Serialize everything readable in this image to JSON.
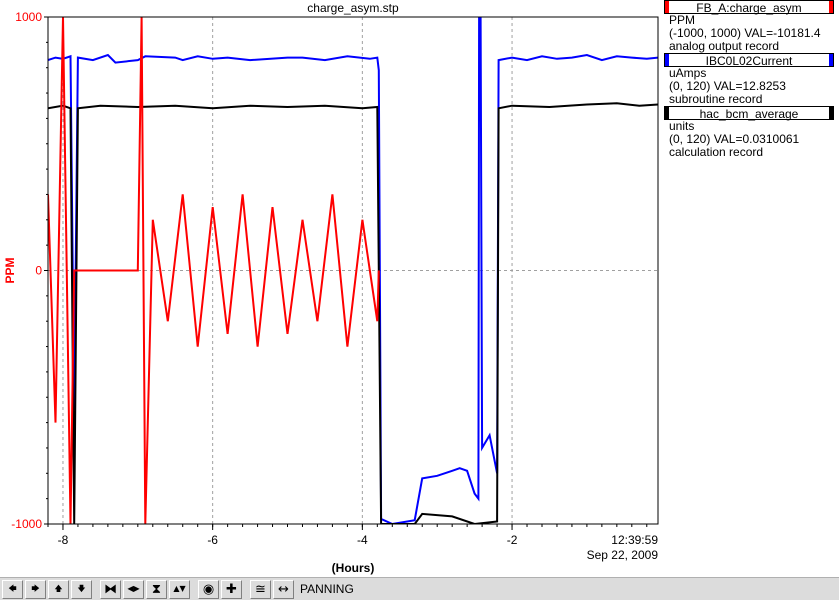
{
  "chart_data": {
    "type": "line",
    "title": "charge_asym.stp",
    "ylabel": "PPM",
    "xlabel": "(Hours)",
    "xlim": [
      -8.2,
      -0.05
    ],
    "ylim": [
      -1000,
      1000
    ],
    "x_ticks": [
      -8,
      -6,
      -4,
      -2
    ],
    "x_tick_labels": [
      "-8",
      "-6",
      "-4",
      "-2"
    ],
    "y_ticks": [
      -1000,
      0,
      1000
    ],
    "y_tick_labels": [
      "-1000",
      "0",
      "1000"
    ],
    "end_time": "12:39:59",
    "end_date": "Sep 22, 2009",
    "grid": true,
    "series": [
      {
        "name": "IBC0L02Current",
        "color": "#0000ff",
        "points": [
          [
            -8.2,
            830
          ],
          [
            -8.1,
            840
          ],
          [
            -8.0,
            835
          ],
          [
            -7.9,
            845
          ],
          [
            -7.85,
            -550
          ],
          [
            -7.8,
            840
          ],
          [
            -7.6,
            830
          ],
          [
            -7.4,
            850
          ],
          [
            -7.3,
            820
          ],
          [
            -7.0,
            830
          ],
          [
            -6.9,
            845
          ],
          [
            -6.5,
            840
          ],
          [
            -6.4,
            830
          ],
          [
            -6.2,
            845
          ],
          [
            -6.0,
            835
          ],
          [
            -5.8,
            840
          ],
          [
            -5.5,
            830
          ],
          [
            -5.0,
            840
          ],
          [
            -4.8,
            840
          ],
          [
            -4.5,
            830
          ],
          [
            -4.2,
            845
          ],
          [
            -3.9,
            835
          ],
          [
            -3.8,
            840
          ],
          [
            -3.78,
            790
          ],
          [
            -3.75,
            -980
          ],
          [
            -3.6,
            -1000
          ],
          [
            -3.3,
            -985
          ],
          [
            -3.2,
            -820
          ],
          [
            -3.0,
            -810
          ],
          [
            -2.9,
            -800
          ],
          [
            -2.8,
            -790
          ],
          [
            -2.7,
            -780
          ],
          [
            -2.6,
            -790
          ],
          [
            -2.5,
            -880
          ],
          [
            -2.45,
            -900
          ],
          [
            -2.44,
            1000
          ],
          [
            -2.42,
            1000
          ],
          [
            -2.4,
            -700
          ],
          [
            -2.3,
            -650
          ],
          [
            -2.2,
            -800
          ],
          [
            -2.18,
            830
          ],
          [
            -2.0,
            840
          ],
          [
            -1.8,
            830
          ],
          [
            -1.6,
            845
          ],
          [
            -1.4,
            835
          ],
          [
            -1.2,
            840
          ],
          [
            -1.0,
            850
          ],
          [
            -0.8,
            830
          ],
          [
            -0.6,
            845
          ],
          [
            -0.4,
            840
          ],
          [
            -0.2,
            835
          ],
          [
            -0.05,
            840
          ]
        ]
      },
      {
        "name": "hac_bcm_average",
        "color": "#000000",
        "points": [
          [
            -8.2,
            640
          ],
          [
            -8.0,
            650
          ],
          [
            -7.9,
            640
          ],
          [
            -7.85,
            -1000
          ],
          [
            -7.8,
            640
          ],
          [
            -7.5,
            650
          ],
          [
            -7.0,
            645
          ],
          [
            -6.5,
            650
          ],
          [
            -6.0,
            640
          ],
          [
            -5.5,
            650
          ],
          [
            -5.0,
            645
          ],
          [
            -4.5,
            650
          ],
          [
            -4.0,
            640
          ],
          [
            -3.8,
            645
          ],
          [
            -3.75,
            -1000
          ],
          [
            -3.3,
            -1000
          ],
          [
            -3.2,
            -960
          ],
          [
            -2.8,
            -970
          ],
          [
            -2.5,
            -1000
          ],
          [
            -2.2,
            -990
          ],
          [
            -2.18,
            640
          ],
          [
            -2.0,
            650
          ],
          [
            -1.5,
            645
          ],
          [
            -1.0,
            655
          ],
          [
            -0.6,
            660
          ],
          [
            -0.3,
            650
          ],
          [
            -0.05,
            655
          ]
        ]
      },
      {
        "name": "FB_A:charge_asym",
        "color": "#ff0000",
        "points": [
          [
            -8.2,
            300
          ],
          [
            -8.1,
            -600
          ],
          [
            -8.0,
            1000
          ],
          [
            -7.9,
            -1000
          ],
          [
            -7.85,
            0
          ],
          [
            -7.5,
            0
          ],
          [
            -7.0,
            0
          ],
          [
            -6.95,
            1000
          ],
          [
            -6.9,
            -1000
          ],
          [
            -6.8,
            200
          ],
          [
            -6.6,
            -200
          ],
          [
            -6.4,
            300
          ],
          [
            -6.2,
            -300
          ],
          [
            -6.0,
            250
          ],
          [
            -5.8,
            -250
          ],
          [
            -5.6,
            300
          ],
          [
            -5.4,
            -300
          ],
          [
            -5.2,
            250
          ],
          [
            -5.0,
            -250
          ],
          [
            -4.8,
            200
          ],
          [
            -4.6,
            -200
          ],
          [
            -4.4,
            300
          ],
          [
            -4.2,
            -300
          ],
          [
            -4.0,
            200
          ],
          [
            -3.8,
            -200
          ],
          [
            -3.78,
            0
          ]
        ]
      }
    ]
  },
  "legend": [
    {
      "name": "FB_A:charge_asym",
      "color": "#ff0000",
      "units": "PPM",
      "range_value": "(-1000, 1000)  VAL=-10181.4",
      "record_type": "analog output record"
    },
    {
      "name": "IBC0L02Current",
      "color": "#0000ff",
      "units": "uAmps",
      "range_value": "(0, 120) VAL=12.8253",
      "record_type": "subroutine record"
    },
    {
      "name": "hac_bcm_average",
      "color": "#000000",
      "units": "units",
      "range_value": "(0, 120) VAL=0.0310061",
      "record_type": "calculation record"
    }
  ],
  "toolbar": {
    "buttons": [
      {
        "name": "pan-left-button",
        "glyph": "🡄"
      },
      {
        "name": "pan-right-button",
        "glyph": "🡆"
      },
      {
        "name": "pan-up-button",
        "glyph": "🡅"
      },
      {
        "name": "pan-down-button",
        "glyph": "🡇"
      },
      {
        "name": "zoom-in-x-button",
        "glyph": "⧓"
      },
      {
        "name": "zoom-out-x-button",
        "glyph": "◀▶"
      },
      {
        "name": "zoom-in-y-button",
        "glyph": "⧗"
      },
      {
        "name": "zoom-out-y-button",
        "glyph": "▲▼"
      },
      {
        "name": "reset-button",
        "glyph": "◉"
      },
      {
        "name": "add-button",
        "glyph": "✚"
      },
      {
        "name": "auto-scale-button",
        "glyph": "≅"
      },
      {
        "name": "pan-mode-button",
        "glyph": "↔"
      }
    ],
    "mode_label": "PANNING"
  }
}
